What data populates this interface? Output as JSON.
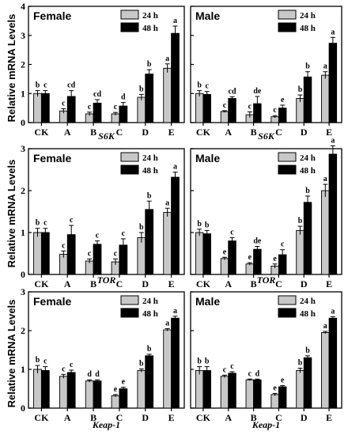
{
  "figure": {
    "ylabel": "Relative mRNA Levels",
    "legend": [
      {
        "label": "24 h",
        "color": "#c8c8c8"
      },
      {
        "label": "48 h",
        "color": "#000000"
      }
    ]
  },
  "chart_data": [
    {
      "type": "bar",
      "title": "Female",
      "xlabel": "S6K",
      "ylabel": "Relative mRNA Levels",
      "categories": [
        "CK",
        "A",
        "B",
        "C",
        "D",
        "E"
      ],
      "ylim": [
        0,
        4
      ],
      "yticks": [
        0,
        1,
        2,
        3,
        4
      ],
      "legend_position": "top-right",
      "series": [
        {
          "name": "24 h",
          "color": "#c8c8c8",
          "values": [
            1.0,
            0.4,
            0.3,
            0.3,
            0.87,
            1.87
          ],
          "errors": [
            0.1,
            0.08,
            0.06,
            0.05,
            0.1,
            0.15
          ],
          "labels": [
            "b",
            "c",
            "c",
            "c",
            "b",
            "a"
          ]
        },
        {
          "name": "48 h",
          "color": "#000000",
          "values": [
            1.0,
            0.9,
            0.67,
            0.57,
            1.67,
            3.07
          ],
          "errors": [
            0.1,
            0.2,
            0.12,
            0.12,
            0.15,
            0.25
          ],
          "labels": [
            "c",
            "cd",
            "cd",
            "d",
            "b",
            "a"
          ]
        }
      ]
    },
    {
      "type": "bar",
      "title": "Male",
      "xlabel": "S6K",
      "ylabel": "Relative mRNA Levels",
      "categories": [
        "CK",
        "A",
        "B",
        "C",
        "D",
        "E"
      ],
      "ylim": [
        0,
        4
      ],
      "yticks": [
        0,
        1,
        2,
        3,
        4
      ],
      "legend_position": "top-right",
      "series": [
        {
          "name": "24 h",
          "color": "#c8c8c8",
          "values": [
            1.0,
            0.38,
            0.27,
            0.2,
            0.83,
            1.63
          ],
          "errors": [
            0.1,
            0.03,
            0.1,
            0.04,
            0.12,
            0.12
          ],
          "labels": [
            "b",
            "c",
            "c",
            "c",
            "b",
            "a"
          ]
        },
        {
          "name": "48 h",
          "color": "#000000",
          "values": [
            0.97,
            0.83,
            0.65,
            0.5,
            1.57,
            2.73
          ],
          "errors": [
            0.1,
            0.06,
            0.25,
            0.1,
            0.18,
            0.2
          ],
          "labels": [
            "c",
            "cd",
            "de",
            "e",
            "b",
            "a"
          ]
        }
      ]
    },
    {
      "type": "bar",
      "title": "Female",
      "xlabel": "TOR",
      "ylabel": "Relative mRNA Levels",
      "categories": [
        "CK",
        "A",
        "B",
        "C",
        "D",
        "E"
      ],
      "ylim": [
        0,
        3
      ],
      "yticks": [
        0,
        1,
        2,
        3
      ],
      "legend_position": "top-right",
      "series": [
        {
          "name": "24 h",
          "color": "#c8c8c8",
          "values": [
            1.0,
            0.48,
            0.32,
            0.3,
            0.88,
            1.48
          ],
          "errors": [
            0.1,
            0.08,
            0.05,
            0.07,
            0.12,
            0.1
          ],
          "labels": [
            "b",
            "c",
            "c",
            "c",
            "b",
            "a"
          ]
        },
        {
          "name": "48 h",
          "color": "#000000",
          "values": [
            1.0,
            0.95,
            0.72,
            0.7,
            1.55,
            2.32
          ],
          "errors": [
            0.1,
            0.22,
            0.08,
            0.15,
            0.2,
            0.12
          ],
          "labels": [
            "c",
            "c",
            "c",
            "c",
            "b",
            "a"
          ]
        }
      ]
    },
    {
      "type": "bar",
      "title": "Male",
      "xlabel": "TOR",
      "ylabel": "Relative mRNA Levels",
      "categories": [
        "CK",
        "A",
        "B",
        "C",
        "D",
        "E"
      ],
      "ylim": [
        0,
        3
      ],
      "yticks": [
        0,
        1,
        2,
        3
      ],
      "legend_position": "top-right",
      "series": [
        {
          "name": "24 h",
          "color": "#c8c8c8",
          "values": [
            1.0,
            0.38,
            0.25,
            0.2,
            1.05,
            2.0
          ],
          "errors": [
            0.08,
            0.03,
            0.03,
            0.05,
            0.1,
            0.15
          ],
          "labels": [
            "b",
            "e",
            "e",
            "e",
            "b",
            "a"
          ]
        },
        {
          "name": "48 h",
          "color": "#000000",
          "values": [
            0.97,
            0.8,
            0.6,
            0.47,
            1.72,
            2.87
          ],
          "errors": [
            0.08,
            0.08,
            0.07,
            0.12,
            0.15,
            0.2
          ],
          "labels": [
            "b",
            "c",
            "de",
            "c",
            "b",
            "a"
          ]
        }
      ]
    },
    {
      "type": "bar",
      "title": "Female",
      "xlabel": "Keap-1",
      "ylabel": "Relative mRNA Levels",
      "categories": [
        "CK",
        "A",
        "B",
        "C",
        "D",
        "E"
      ],
      "ylim": [
        0,
        3
      ],
      "yticks": [
        0,
        1,
        2,
        3
      ],
      "legend_position": "top-right",
      "series": [
        {
          "name": "24 h",
          "color": "#c8c8c8",
          "values": [
            1.0,
            0.82,
            0.7,
            0.32,
            0.97,
            2.02
          ],
          "errors": [
            0.1,
            0.05,
            0.03,
            0.03,
            0.04,
            0.03
          ],
          "labels": [
            "b",
            "c",
            "d",
            "e",
            "b",
            "a"
          ]
        },
        {
          "name": "48 h",
          "color": "#000000",
          "values": [
            0.97,
            0.92,
            0.7,
            0.5,
            1.35,
            2.32
          ],
          "errors": [
            0.1,
            0.06,
            0.03,
            0.04,
            0.04,
            0.05
          ],
          "labels": [
            "c",
            "c",
            "d",
            "e",
            "b",
            "a"
          ]
        }
      ]
    },
    {
      "type": "bar",
      "title": "Male",
      "xlabel": "Keap-1",
      "ylabel": "Relative mRNA Levels",
      "categories": [
        "CK",
        "A",
        "B",
        "C",
        "D",
        "E"
      ],
      "ylim": [
        0,
        3
      ],
      "yticks": [
        0,
        1,
        2,
        3
      ],
      "legend_position": "top-right",
      "series": [
        {
          "name": "24 h",
          "color": "#c8c8c8",
          "values": [
            0.97,
            0.82,
            0.73,
            0.35,
            0.97,
            1.95
          ],
          "errors": [
            0.1,
            0.03,
            0.02,
            0.03,
            0.06,
            0.03
          ],
          "labels": [
            "b",
            "c",
            "c",
            "e",
            "b",
            "a"
          ]
        },
        {
          "name": "48 h",
          "color": "#000000",
          "values": [
            0.97,
            0.9,
            0.73,
            0.55,
            1.3,
            2.32
          ],
          "errors": [
            0.1,
            0.04,
            0.02,
            0.03,
            0.05,
            0.04
          ],
          "labels": [
            "b",
            "c",
            "d",
            "e",
            "b",
            "a"
          ]
        }
      ]
    }
  ]
}
